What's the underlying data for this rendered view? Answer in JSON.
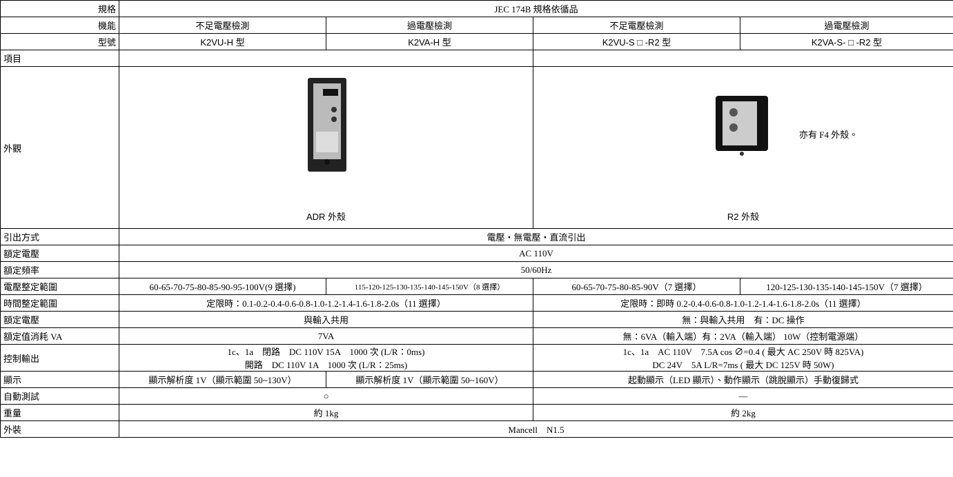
{
  "header": {
    "spec_label": "規格",
    "spec": "JEC 174B 規格依循品",
    "function_label": "機能",
    "functions": [
      "不足電壓檢測",
      "過電壓檢測",
      "不足電壓檢測",
      "過電壓檢測"
    ],
    "model_label": "型號",
    "models": [
      "K2VU-H 型",
      "K2VA-H 型",
      "K2VU-S □ -R2 型",
      "K2VA-S- □ -R2 型"
    ],
    "item_label": "項目"
  },
  "appearance": {
    "label": "外觀",
    "captions": [
      "ADR 外殼",
      "R2 外殼"
    ],
    "note": "亦有 F4 外殼。"
  },
  "rows": [
    {
      "label": "引出方式",
      "cells": [
        "電壓・無電壓・直流引出"
      ]
    },
    {
      "label": "額定電壓",
      "cells": [
        "AC 110V"
      ]
    },
    {
      "label": "額定頻率",
      "cells": [
        "50/60Hz"
      ]
    },
    {
      "label": "電壓整定範圍",
      "cells": [
        "60-65-70-75-80-85-90-95-100V(9 選擇)",
        "115-120-125-130-135-140-145-150V（8 選擇）",
        "60-65-70-75-80-85-90V（7 選擇）",
        "120-125-130-135-140-145-150V（7 選擇）"
      ]
    },
    {
      "label": "時間整定範圍",
      "cells": [
        "定限時：0.1-0.2-0.4-0.6-0.8-1.0-1.2-1.4-1.6-1.8-2.0s（11 選擇）",
        "定限時：即時 0.2-0.4-0.6-0.8-1.0-1.2-1.4-1.6-1.8-2.0s（11 選擇）"
      ]
    },
    {
      "label": "額定電壓",
      "cells": [
        "與輸入共用",
        "無：與輸入共用　有：DC 操作"
      ]
    },
    {
      "label": "額定值消耗 VA",
      "cells": [
        "7VA",
        "無：6VA（輸入端）有：2VA（輸入端） 10W（控制電源端）"
      ]
    },
    {
      "label": "控制輸出",
      "cells": [
        [
          "1c、1a　閉路　DC 110V 15A　1000 次 (L/R：0ms)",
          "開路　DC 110V 1A　1000 次 (L/R：25ms)"
        ],
        [
          "1c、1a　AC 110V　7.5A cos ∅=0.4 ( 最大 AC 250V 時 825VA)",
          "DC 24V　5A L/R=7ms ( 最大 DC 125V 時 50W)"
        ]
      ]
    },
    {
      "label": "顯示",
      "cells": [
        "顯示解析度 1V（顯示範圍 50~130V）",
        "顯示解析度 1V（顯示範圍 50~160V）",
        "起動顯示（LED 顯示）、動作顯示（跳脫顯示）手動復歸式"
      ]
    },
    {
      "label": "自動測試",
      "cells": [
        "○",
        "—"
      ]
    },
    {
      "label": "重量",
      "cells": [
        "約 1kg",
        "約 2kg"
      ]
    },
    {
      "label": "外裝",
      "cells": [
        "Mancell　N1.5"
      ]
    }
  ]
}
